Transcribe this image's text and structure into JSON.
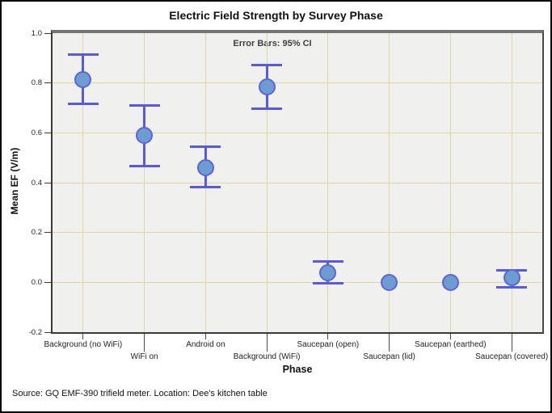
{
  "chart_data": {
    "type": "scatter",
    "title": "Electric Field Strength by Survey Phase",
    "xlabel": "Phase",
    "ylabel": "Mean EF (V/m)",
    "annotation": "Error Bars: 95% CI",
    "footer": "Source: GQ EMF-390 trifield meter. Location: Dee's kitchen table",
    "ylim": [
      -0.2,
      1.0
    ],
    "yticks": [
      1.0,
      0.8,
      0.6,
      0.4,
      0.2,
      0.0,
      -0.2
    ],
    "grid": true,
    "legend_position": "none",
    "categories": [
      "Background (no WiFi)",
      "WiFi on",
      "Android on",
      "Background (WiFi)",
      "Saucepan (open)",
      "Saucepan (lid)",
      "Saucepan (earthed)",
      "Saucepan (covered)"
    ],
    "series": [
      {
        "name": "Mean EF",
        "values": [
          0.815,
          0.59,
          0.46,
          0.785,
          0.04,
          0.0,
          0.0,
          0.02
        ],
        "ci_low": [
          0.715,
          0.465,
          0.38,
          0.695,
          -0.005,
          0.0,
          0.0,
          -0.02
        ],
        "ci_high": [
          0.915,
          0.71,
          0.545,
          0.875,
          0.085,
          0.0,
          0.0,
          0.05
        ]
      }
    ],
    "colors": {
      "marker_fill": "#6d9dce",
      "marker_border": "#5c63e2",
      "error_bar": "#5a5ae0",
      "gridline": "#dcd8a4",
      "plot_bg": "#f0f0ee"
    }
  }
}
